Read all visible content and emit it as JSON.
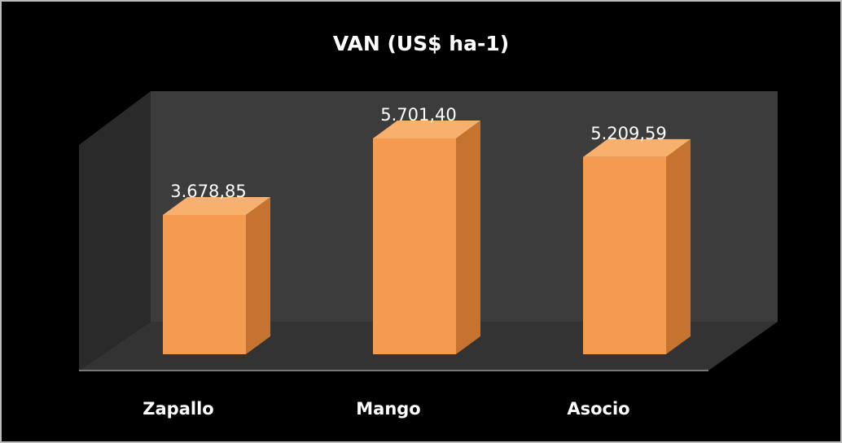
{
  "chart_data": {
    "type": "bar3d",
    "title": "VAN (US$ ha-1)",
    "categories": [
      "Zapallo",
      "Mango",
      "Asocio"
    ],
    "values": [
      3678.85,
      5701.4,
      5209.59
    ],
    "value_labels": [
      "3.678,85",
      "5.701,40",
      "5.209,59"
    ],
    "color": "#f59b4f"
  }
}
